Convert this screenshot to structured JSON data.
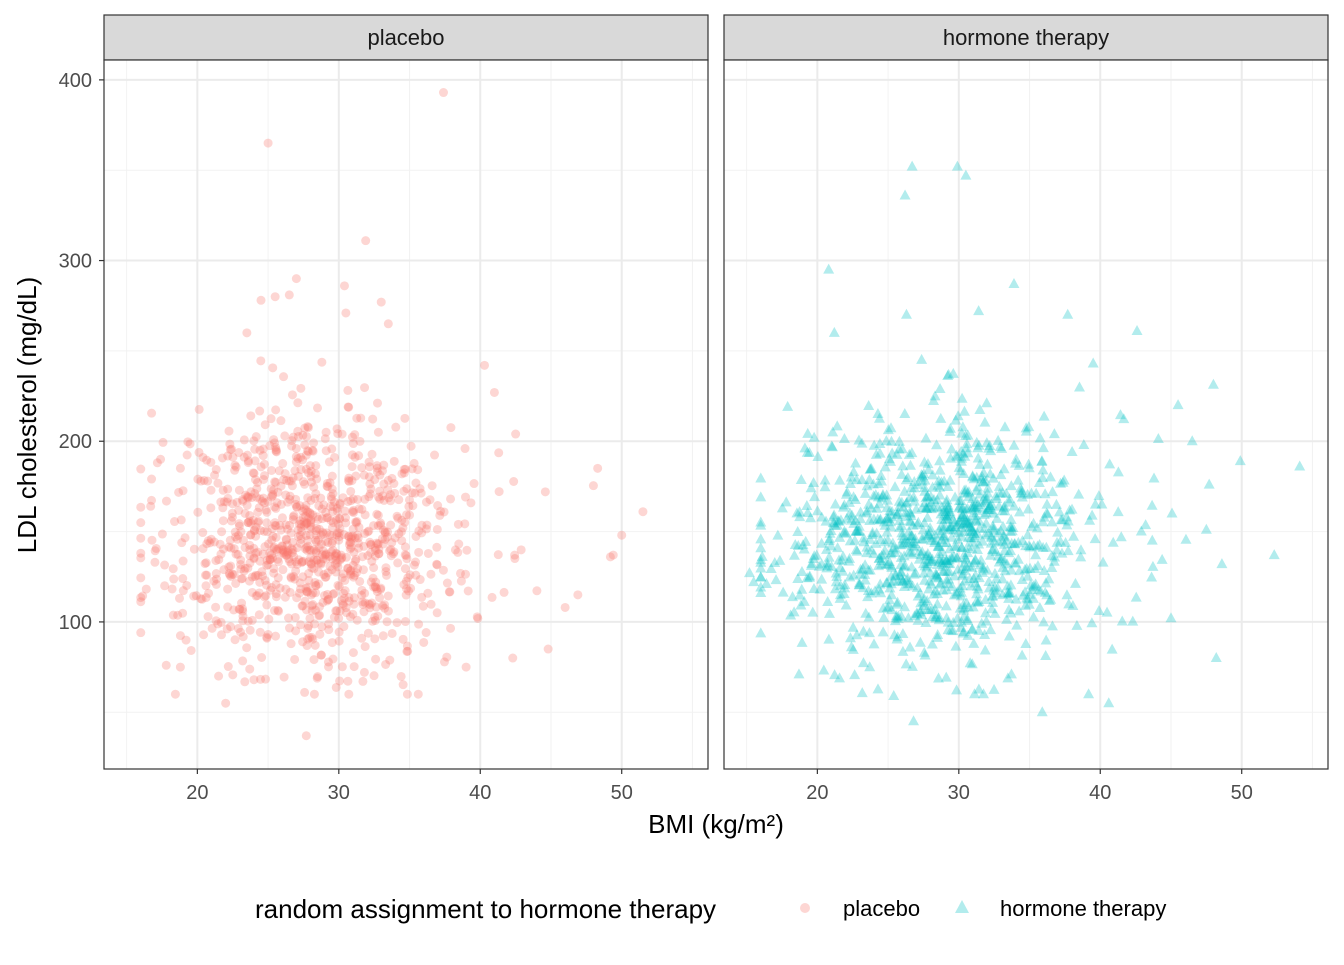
{
  "chart_data": {
    "type": "scatter",
    "xlabel": "BMI (kg/m²)",
    "ylabel": "LDL cholesterol (mg/dL)",
    "xlim": [
      13.4,
      56.1
    ],
    "ylim": [
      18.6,
      411
    ],
    "x_ticks": [
      "20",
      "30",
      "40",
      "50"
    ],
    "x_tick_values": [
      20,
      30,
      40,
      50
    ],
    "y_ticks": [
      "100",
      "200",
      "300",
      "400"
    ],
    "y_tick_values": [
      100,
      200,
      300,
      400
    ],
    "grid": true,
    "legend": {
      "title": "random assignment to hormone therapy",
      "position": "bottom",
      "entries": [
        "placebo",
        "hormone therapy"
      ]
    },
    "panels": [
      {
        "strip": "placebo",
        "series": "placebo",
        "shape": "circle",
        "color": "#F8766D",
        "alpha": 0.3,
        "bulk": {
          "n": 1050,
          "x_mean": 28.2,
          "x_sd": 5.3,
          "y_mean": 145,
          "y_sd": 34,
          "seed": 11
        },
        "points": [
          [
            25,
            365
          ],
          [
            37.4,
            393
          ],
          [
            31.9,
            311
          ],
          [
            27.7,
            37
          ],
          [
            22,
            55
          ],
          [
            50,
            148
          ],
          [
            51.5,
            161
          ],
          [
            48.3,
            185
          ],
          [
            44.8,
            85
          ],
          [
            16.7,
            164
          ],
          [
            17,
            133
          ],
          [
            27,
            290
          ],
          [
            30.5,
            271
          ],
          [
            49.4,
            137
          ],
          [
            49.2,
            136
          ],
          [
            46.9,
            115
          ],
          [
            46,
            108
          ],
          [
            44.6,
            172
          ],
          [
            42.5,
            204
          ],
          [
            40.3,
            242
          ],
          [
            25.5,
            280
          ],
          [
            26.5,
            281
          ],
          [
            23.5,
            260
          ],
          [
            24.5,
            278
          ],
          [
            33,
            277
          ],
          [
            33.5,
            265
          ],
          [
            30.4,
            286
          ],
          [
            41,
            227
          ],
          [
            17.8,
            76
          ],
          [
            18.8,
            75
          ],
          [
            21.5,
            70
          ],
          [
            24,
            68
          ],
          [
            39,
            75
          ]
        ]
      },
      {
        "strip": "hormone therapy",
        "series": "hormone therapy",
        "shape": "triangle",
        "color": "#00BFC4",
        "alpha": 0.3,
        "bulk": {
          "n": 1100,
          "x_mean": 28.5,
          "x_sd": 5.8,
          "y_mean": 143,
          "y_sd": 33,
          "seed": 29
        },
        "points": [
          [
            26.7,
            352
          ],
          [
            29.9,
            352
          ],
          [
            30.5,
            347
          ],
          [
            26.2,
            336
          ],
          [
            20.8,
            295
          ],
          [
            33.9,
            287
          ],
          [
            37.7,
            270
          ],
          [
            42.6,
            261
          ],
          [
            54.1,
            186
          ],
          [
            52.3,
            137
          ],
          [
            48.2,
            80
          ],
          [
            49.9,
            189
          ],
          [
            46.5,
            200
          ],
          [
            47.7,
            176
          ],
          [
            15.2,
            127
          ],
          [
            26.8,
            45
          ],
          [
            35.9,
            50
          ],
          [
            40.6,
            55
          ],
          [
            25.4,
            59
          ],
          [
            18.7,
            71
          ],
          [
            16.4,
            121
          ],
          [
            17.9,
            219
          ],
          [
            21.2,
            260
          ],
          [
            26.3,
            270
          ],
          [
            31.4,
            272
          ],
          [
            39.5,
            243
          ],
          [
            45.5,
            220
          ],
          [
            47.5,
            151
          ],
          [
            48.6,
            132
          ],
          [
            45,
            102
          ],
          [
            15.5,
            122
          ],
          [
            16.1,
            136
          ]
        ]
      }
    ]
  }
}
